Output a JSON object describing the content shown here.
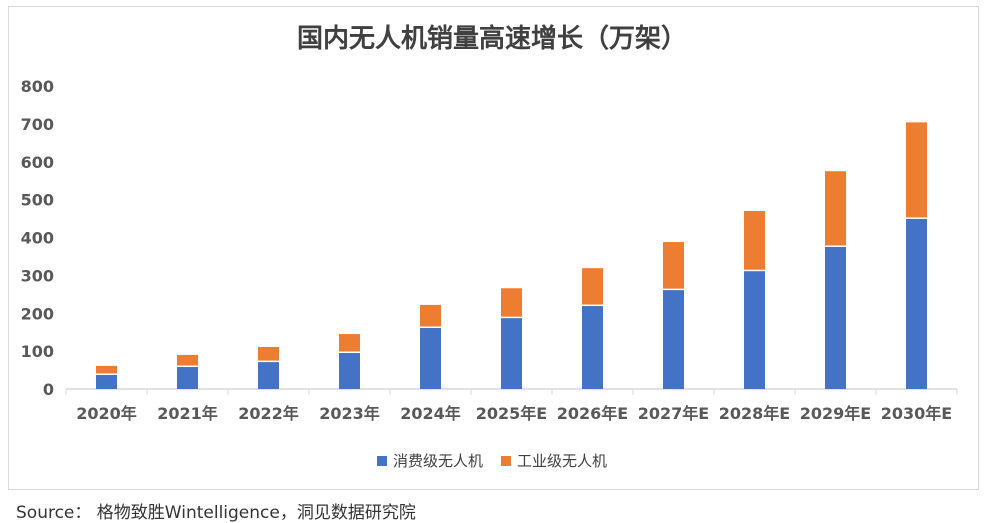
{
  "chart_data": {
    "type": "bar",
    "stacked": true,
    "title": "国内无人机销量高速增长（万架）",
    "categories": [
      "2020年",
      "2021年",
      "2022年",
      "2023年",
      "2024年",
      "2025年E",
      "2026年E",
      "2027年E",
      "2028年E",
      "2029年E",
      "2030年E"
    ],
    "series": [
      {
        "name": "消费级无人机",
        "color": "#4472C4",
        "values": [
          37,
          58,
          71,
          95,
          161,
          187,
          219,
          261,
          311,
          375,
          449
        ]
      },
      {
        "name": "工业级无人机",
        "color": "#ED7D31",
        "values": [
          24,
          32,
          40,
          50,
          61,
          79,
          100,
          127,
          159,
          200,
          255
        ]
      }
    ],
    "ylim": [
      0,
      800
    ],
    "yticks": [
      0,
      100,
      200,
      300,
      400,
      500,
      600,
      700,
      800
    ],
    "legend": "bottom",
    "grid": false
  },
  "source": "Source：  格物致胜Wintelligence，洞见数据研究院"
}
